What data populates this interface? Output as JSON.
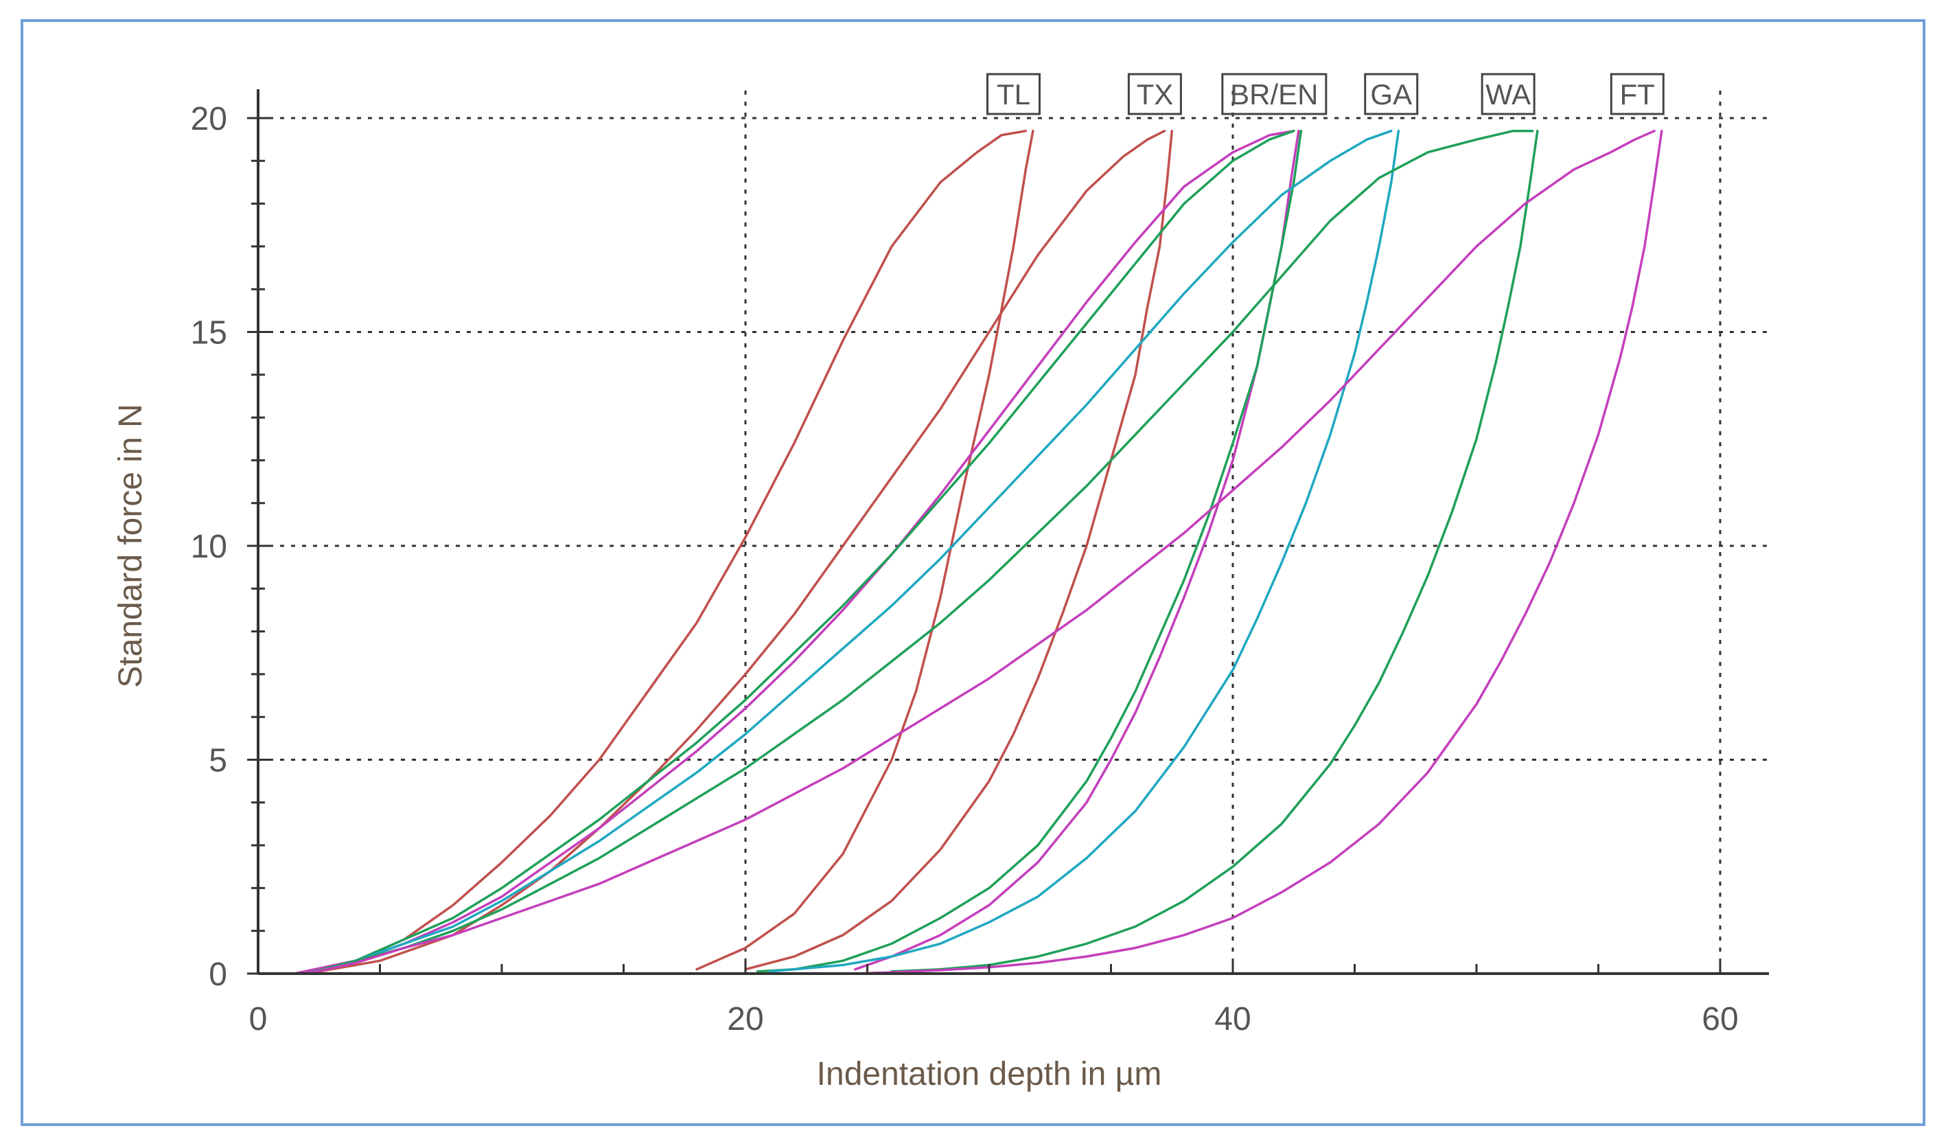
{
  "chart_data": {
    "type": "line",
    "title": "",
    "xlabel": "Indentation depth in µm",
    "ylabel": "Standard force in N",
    "xlim": [
      0,
      62
    ],
    "ylim": [
      0,
      20
    ],
    "x_ticks": [
      0,
      20,
      40,
      60
    ],
    "y_ticks": [
      0,
      5,
      10,
      15,
      20
    ],
    "grid": true,
    "series": [
      {
        "name": "TL",
        "color": "#c0504d",
        "loading": {
          "x": [
            1.5,
            4,
            6,
            8,
            10,
            12,
            14,
            16,
            18,
            20,
            22,
            24,
            26,
            28,
            29.5,
            30.5,
            31.5
          ],
          "y": [
            0,
            0.3,
            0.8,
            1.6,
            2.6,
            3.7,
            5.0,
            6.6,
            8.2,
            10.2,
            12.4,
            14.8,
            17.0,
            18.5,
            19.2,
            19.6,
            19.7
          ]
        },
        "unloading": {
          "x": [
            31.8,
            31.5,
            31,
            30.5,
            30,
            29,
            28,
            27,
            26,
            24,
            22,
            20,
            18
          ],
          "y": [
            19.7,
            18.8,
            17.0,
            15.5,
            14.0,
            11.5,
            8.8,
            6.6,
            5.0,
            2.8,
            1.4,
            0.6,
            0.1
          ]
        }
      },
      {
        "name": "TX",
        "color": "#c0504d",
        "loading": {
          "x": [
            2,
            5,
            8,
            10,
            12,
            14,
            16,
            18,
            20,
            22,
            24,
            26,
            28,
            30,
            32,
            34,
            35.5,
            36.5,
            37.2
          ],
          "y": [
            0,
            0.3,
            0.9,
            1.6,
            2.4,
            3.4,
            4.5,
            5.7,
            7.0,
            8.4,
            10.0,
            11.6,
            13.2,
            15.0,
            16.8,
            18.3,
            19.1,
            19.5,
            19.7
          ]
        },
        "unloading": {
          "x": [
            37.5,
            37.3,
            37,
            36.5,
            36,
            35,
            34,
            33,
            32,
            31,
            30,
            28,
            26,
            24,
            22,
            20
          ],
          "y": [
            19.7,
            18.5,
            17.0,
            15.6,
            14.0,
            12.0,
            10.0,
            8.4,
            6.9,
            5.6,
            4.5,
            2.9,
            1.7,
            0.9,
            0.4,
            0.1
          ]
        }
      },
      {
        "name": "BR/EN",
        "color": "#c43fbc",
        "loading": {
          "x": [
            1.5,
            4,
            6,
            8,
            10,
            12,
            14,
            16,
            18,
            20,
            22,
            24,
            26,
            28,
            30,
            32,
            34,
            36,
            38,
            40,
            41.5,
            42.5
          ],
          "y": [
            0,
            0.3,
            0.7,
            1.2,
            1.8,
            2.6,
            3.4,
            4.3,
            5.2,
            6.2,
            7.3,
            8.5,
            9.8,
            11.2,
            12.7,
            14.2,
            15.7,
            17.1,
            18.4,
            19.2,
            19.6,
            19.7
          ]
        },
        "unloading": {
          "x": [
            42.7,
            42.4,
            42,
            41.5,
            41,
            40,
            39,
            38,
            37,
            36,
            35,
            34,
            32,
            30,
            28,
            26,
            24.5
          ],
          "y": [
            19.7,
            18.6,
            17.0,
            15.6,
            14.2,
            12.0,
            10.3,
            8.8,
            7.4,
            6.1,
            5.0,
            4.0,
            2.6,
            1.6,
            0.9,
            0.4,
            0.1
          ]
        }
      },
      {
        "name": "BR/EN",
        "color": "#1fa05a",
        "loading": {
          "x": [
            2,
            4,
            6,
            8,
            10,
            12,
            14,
            16,
            18,
            20,
            22,
            24,
            26,
            28,
            30,
            32,
            34,
            36,
            38,
            40,
            41.5,
            42.5
          ],
          "y": [
            0,
            0.3,
            0.8,
            1.3,
            2.0,
            2.8,
            3.6,
            4.5,
            5.4,
            6.4,
            7.5,
            8.6,
            9.8,
            11.1,
            12.4,
            13.8,
            15.2,
            16.6,
            18.0,
            19.0,
            19.5,
            19.7
          ]
        },
        "unloading": {
          "x": [
            42.8,
            42.5,
            42,
            41.5,
            41,
            40,
            39,
            38,
            37,
            36,
            35,
            34,
            32,
            30,
            28,
            26,
            24,
            22,
            20.5
          ],
          "y": [
            19.7,
            18.5,
            17.0,
            15.6,
            14.2,
            12.4,
            10.7,
            9.2,
            7.9,
            6.6,
            5.5,
            4.5,
            3.0,
            2.0,
            1.3,
            0.7,
            0.3,
            0.1,
            0.05
          ]
        }
      },
      {
        "name": "GA",
        "color": "#1fa8c0",
        "loading": {
          "x": [
            2,
            4,
            6,
            8,
            10,
            12,
            14,
            16,
            18,
            20,
            22,
            24,
            26,
            28,
            30,
            32,
            34,
            36,
            38,
            40,
            42,
            44,
            45.5,
            46.5
          ],
          "y": [
            0,
            0.3,
            0.7,
            1.1,
            1.7,
            2.4,
            3.1,
            3.9,
            4.7,
            5.6,
            6.6,
            7.6,
            8.6,
            9.7,
            10.9,
            12.1,
            13.3,
            14.6,
            15.9,
            17.1,
            18.2,
            19.0,
            19.5,
            19.7
          ]
        },
        "unloading": {
          "x": [
            46.8,
            46.5,
            46,
            45.5,
            45,
            44,
            43,
            42,
            41,
            40,
            38,
            36,
            34,
            32,
            30,
            28,
            26,
            24,
            22,
            21
          ],
          "y": [
            19.7,
            18.5,
            17.0,
            15.7,
            14.5,
            12.6,
            11.0,
            9.6,
            8.3,
            7.1,
            5.3,
            3.8,
            2.7,
            1.8,
            1.2,
            0.7,
            0.4,
            0.2,
            0.1,
            0.05
          ]
        }
      },
      {
        "name": "WA",
        "color": "#1fa05a",
        "loading": {
          "x": [
            2,
            4,
            6,
            8,
            10,
            12,
            14,
            16,
            18,
            20,
            22,
            24,
            26,
            28,
            30,
            32,
            34,
            36,
            38,
            40,
            42,
            44,
            46,
            48,
            50,
            51.5,
            52.3
          ],
          "y": [
            0,
            0.3,
            0.6,
            1.0,
            1.5,
            2.1,
            2.7,
            3.4,
            4.1,
            4.8,
            5.6,
            6.4,
            7.3,
            8.2,
            9.2,
            10.3,
            11.4,
            12.6,
            13.8,
            15.0,
            16.3,
            17.6,
            18.6,
            19.2,
            19.5,
            19.7,
            19.7
          ]
        },
        "unloading": {
          "x": [
            52.5,
            52.2,
            51.8,
            51.3,
            50.8,
            50,
            49,
            48,
            47,
            46,
            45,
            44,
            42,
            40,
            38,
            36,
            34,
            32,
            30,
            28,
            26
          ],
          "y": [
            19.7,
            18.5,
            17.0,
            15.6,
            14.3,
            12.5,
            10.8,
            9.3,
            8.0,
            6.8,
            5.8,
            4.9,
            3.5,
            2.5,
            1.7,
            1.1,
            0.7,
            0.4,
            0.2,
            0.1,
            0.05
          ]
        }
      },
      {
        "name": "FT",
        "color": "#c43fbc",
        "loading": {
          "x": [
            2,
            4,
            6,
            8,
            10,
            12,
            14,
            16,
            18,
            20,
            22,
            24,
            26,
            28,
            30,
            32,
            34,
            36,
            38,
            40,
            42,
            44,
            46,
            48,
            50,
            52,
            54,
            55.5,
            56.5,
            57.3
          ],
          "y": [
            0,
            0.25,
            0.6,
            0.9,
            1.3,
            1.7,
            2.1,
            2.6,
            3.1,
            3.6,
            4.2,
            4.8,
            5.5,
            6.2,
            6.9,
            7.7,
            8.5,
            9.4,
            10.3,
            11.3,
            12.3,
            13.4,
            14.6,
            15.8,
            17.0,
            18.0,
            18.8,
            19.2,
            19.5,
            19.7
          ]
        },
        "unloading": {
          "x": [
            57.6,
            57.3,
            56.9,
            56.4,
            55.9,
            55,
            54,
            53,
            52,
            51,
            50,
            48,
            46,
            44,
            42,
            40,
            38,
            36,
            34,
            32,
            30,
            28,
            26,
            24.5
          ],
          "y": [
            19.7,
            18.5,
            17.0,
            15.6,
            14.4,
            12.6,
            11.0,
            9.6,
            8.4,
            7.3,
            6.3,
            4.7,
            3.5,
            2.6,
            1.9,
            1.3,
            0.9,
            0.6,
            0.4,
            0.25,
            0.15,
            0.08,
            0.03,
            0
          ]
        }
      }
    ],
    "curve_labels": [
      {
        "text": "TL",
        "x": 31
      },
      {
        "text": "TX",
        "x": 36.8
      },
      {
        "text": "BR/EN",
        "x": 41.7
      },
      {
        "text": "GA",
        "x": 46.5
      },
      {
        "text": "WA",
        "x": 51.3
      },
      {
        "text": "FT",
        "x": 56.6
      }
    ]
  }
}
